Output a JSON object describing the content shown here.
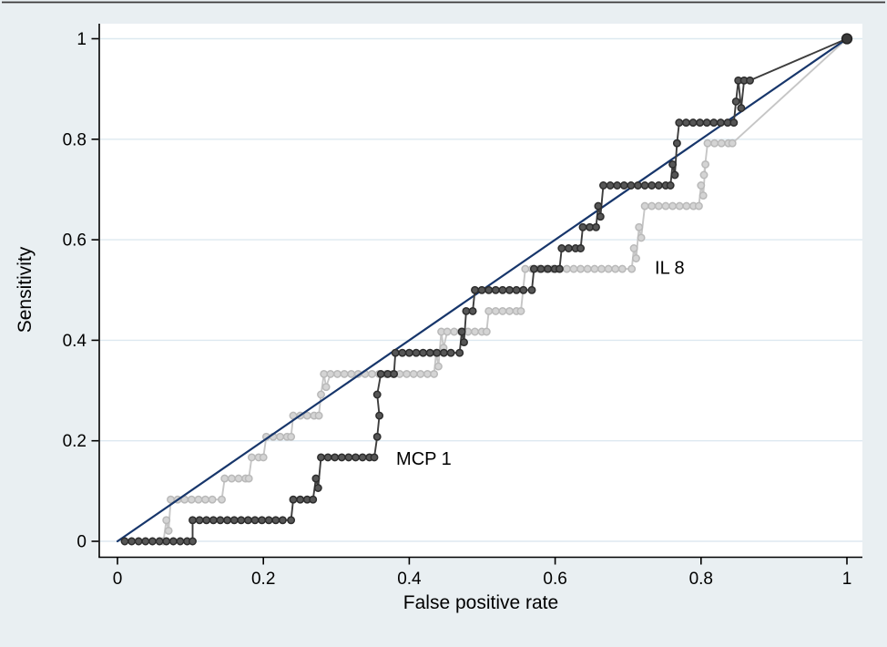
{
  "figure": {
    "background_color": "#e9eff2",
    "plot_background_color": "#ffffff",
    "top_border_color": "#3a3a3a",
    "gridline_color": "#dde9f0",
    "axis_color": "#000000"
  },
  "chart_data": {
    "type": "line",
    "subtype": "roc-step-curves",
    "title": "",
    "xlabel": "False positive rate",
    "ylabel": "Sensitivity",
    "xlim": [
      0,
      1
    ],
    "ylim": [
      0,
      1
    ],
    "grid": "horizontal",
    "legend_position": "none",
    "x_ticks": [
      0,
      0.2,
      0.4,
      0.6,
      0.8,
      1
    ],
    "y_ticks": [
      0,
      0.2,
      0.4,
      0.6,
      0.8,
      1
    ],
    "x_tick_labels": [
      "0",
      "0.2",
      "0.4",
      "0.6",
      "0.8",
      "1"
    ],
    "y_tick_labels": [
      "0",
      "0.2",
      "0.4",
      "0.6",
      "0.8",
      "1"
    ],
    "marker_interval_x": 0.0095,
    "annotations": [
      {
        "text": "IL 8",
        "x": 0.757,
        "y": 0.545
      },
      {
        "text": "MCP 1",
        "x": 0.42,
        "y": 0.165
      }
    ],
    "series": [
      {
        "name": "IL 8",
        "line_color": "#c6c6c6",
        "marker_fill": "#d4d4d4",
        "marker_stroke": "#b9b9b9",
        "markers": true,
        "big_end_marker": false,
        "points": [
          [
            0.063,
            0.0
          ],
          [
            0.067,
            0.042
          ],
          [
            0.07,
            0.021
          ],
          [
            0.073,
            0.083
          ],
          [
            0.143,
            0.083
          ],
          [
            0.147,
            0.125
          ],
          [
            0.18,
            0.125
          ],
          [
            0.184,
            0.167
          ],
          [
            0.2,
            0.167
          ],
          [
            0.204,
            0.208
          ],
          [
            0.238,
            0.208
          ],
          [
            0.241,
            0.25
          ],
          [
            0.276,
            0.25
          ],
          [
            0.279,
            0.292
          ],
          [
            0.283,
            0.333
          ],
          [
            0.286,
            0.307
          ],
          [
            0.292,
            0.333
          ],
          [
            0.434,
            0.333
          ],
          [
            0.437,
            0.375
          ],
          [
            0.44,
            0.348
          ],
          [
            0.444,
            0.417
          ],
          [
            0.447,
            0.385
          ],
          [
            0.452,
            0.417
          ],
          [
            0.506,
            0.417
          ],
          [
            0.509,
            0.458
          ],
          [
            0.553,
            0.458
          ],
          [
            0.556,
            0.5
          ],
          [
            0.559,
            0.542
          ],
          [
            0.705,
            0.542
          ],
          [
            0.708,
            0.583
          ],
          [
            0.711,
            0.563
          ],
          [
            0.715,
            0.625
          ],
          [
            0.718,
            0.604
          ],
          [
            0.723,
            0.667
          ],
          [
            0.797,
            0.667
          ],
          [
            0.8,
            0.708
          ],
          [
            0.803,
            0.688
          ],
          [
            0.806,
            0.75
          ],
          [
            0.804,
            0.729
          ],
          [
            0.809,
            0.792
          ],
          [
            0.843,
            0.792
          ],
          [
            1.0,
            1.0
          ]
        ]
      },
      {
        "name": "Reference",
        "line_color": "#17366b",
        "markers": false,
        "big_end_marker": false,
        "points": [
          [
            0.0,
            0.0
          ],
          [
            1.0,
            1.0
          ]
        ]
      },
      {
        "name": "MCP 1",
        "line_color": "#3d3d3d",
        "marker_fill": "#565656",
        "marker_stroke": "#2d2d2d",
        "markers": true,
        "big_end_marker": true,
        "points": [
          [
            0.01,
            0.0
          ],
          [
            0.103,
            0.0
          ],
          [
            0.103,
            0.042
          ],
          [
            0.238,
            0.042
          ],
          [
            0.241,
            0.083
          ],
          [
            0.268,
            0.083
          ],
          [
            0.272,
            0.125
          ],
          [
            0.275,
            0.106
          ],
          [
            0.279,
            0.167
          ],
          [
            0.352,
            0.167
          ],
          [
            0.356,
            0.208
          ],
          [
            0.359,
            0.25
          ],
          [
            0.356,
            0.292
          ],
          [
            0.361,
            0.333
          ],
          [
            0.379,
            0.333
          ],
          [
            0.381,
            0.375
          ],
          [
            0.469,
            0.375
          ],
          [
            0.472,
            0.417
          ],
          [
            0.475,
            0.396
          ],
          [
            0.478,
            0.458
          ],
          [
            0.487,
            0.458
          ],
          [
            0.49,
            0.5
          ],
          [
            0.568,
            0.5
          ],
          [
            0.571,
            0.542
          ],
          [
            0.606,
            0.542
          ],
          [
            0.609,
            0.583
          ],
          [
            0.635,
            0.583
          ],
          [
            0.638,
            0.625
          ],
          [
            0.656,
            0.625
          ],
          [
            0.659,
            0.667
          ],
          [
            0.662,
            0.646
          ],
          [
            0.666,
            0.708
          ],
          [
            0.758,
            0.708
          ],
          [
            0.761,
            0.75
          ],
          [
            0.764,
            0.729
          ],
          [
            0.767,
            0.792
          ],
          [
            0.77,
            0.833
          ],
          [
            0.845,
            0.833
          ],
          [
            0.848,
            0.875
          ],
          [
            0.851,
            0.917
          ],
          [
            0.855,
            0.862
          ],
          [
            0.859,
            0.917
          ],
          [
            0.867,
            0.917
          ],
          [
            1.0,
            1.0
          ]
        ]
      }
    ]
  }
}
